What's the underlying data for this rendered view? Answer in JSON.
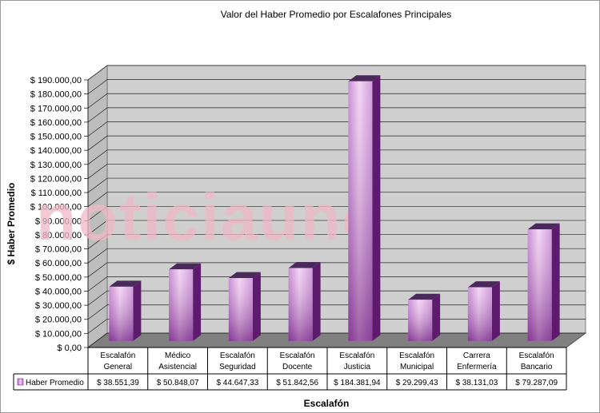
{
  "chart_data": {
    "type": "bar",
    "title": "Valor del Haber Promedio por Escalafones Principales",
    "xlabel": "Escalafón",
    "ylabel": "$ Haber Promedio",
    "ylim": [
      0,
      190000
    ],
    "ytick_step": 10000,
    "ytick_labels": [
      "$ 0,00",
      "$ 10.000,00",
      "$ 20.000,00",
      "$ 30.000,00",
      "$ 40.000,00",
      "$ 50.000,00",
      "$ 60.000,00",
      "$ 70.000,00",
      "$ 80.000,00",
      "$ 90.000,00",
      "$ 100.000,00",
      "$ 110.000,00",
      "$ 120.000,00",
      "$ 130.000,00",
      "$ 140.000,00",
      "$ 150.000,00",
      "$ 160.000,00",
      "$ 170.000,00",
      "$ 180.000,00",
      "$ 190.000,00"
    ],
    "categories": [
      [
        "Escalafón",
        "General"
      ],
      [
        "Médico",
        "Asistencial"
      ],
      [
        "Escalafón",
        "Seguridad"
      ],
      [
        "Escalafón",
        "Docente"
      ],
      [
        "Escalafón",
        "Justicia"
      ],
      [
        "Escalafón",
        "Municipal"
      ],
      [
        "Carrera",
        "Enfermería"
      ],
      [
        "Escalafón",
        "Bancario"
      ]
    ],
    "series": [
      {
        "name": "Haber Promedio",
        "values": [
          38551.39,
          50848.07,
          44647.33,
          51842.56,
          184381.94,
          29299.43,
          38131.03,
          79287.09
        ],
        "value_labels": [
          "$ 38.551,39",
          "$ 50.848,07",
          "$ 44.647,33",
          "$ 51.842,56",
          "$ 184.381,94",
          "$ 29.299,43",
          "$ 38.131,03",
          "$ 79.287,09"
        ]
      }
    ],
    "grid": true,
    "legend": "data-table",
    "colors": {
      "bar_light": "#f0c8f0",
      "bar_mid": "#b060c0",
      "bar_dark": "#601070",
      "bar_top": "#4a2060",
      "wall": "#cccccc",
      "floor": "#7a7a7a"
    }
  },
  "watermark": "noticiauno"
}
